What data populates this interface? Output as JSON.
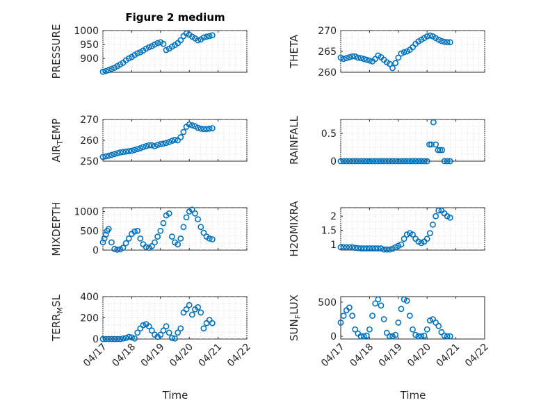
{
  "figure": {
    "title": "Figure 2 medium",
    "xlabel": "Time",
    "marker_color": "#0072bd",
    "xticklabels": [
      "04/17",
      "04/18",
      "04/19",
      "04/20",
      "04/21",
      "04/22"
    ]
  },
  "chart_data": [
    {
      "type": "scatter",
      "ylabel": "PRESSURE",
      "ylim": [
        850,
        1000
      ],
      "yticks": [
        900,
        950,
        1000
      ],
      "grid": true,
      "xlim": [
        0,
        5
      ],
      "x": [
        0.0,
        0.1,
        0.2,
        0.3,
        0.4,
        0.5,
        0.6,
        0.7,
        0.8,
        0.9,
        1.0,
        1.1,
        1.2,
        1.3,
        1.4,
        1.5,
        1.6,
        1.7,
        1.8,
        1.9,
        2.0,
        2.1,
        2.2,
        2.3,
        2.4,
        2.5,
        2.6,
        2.7,
        2.8,
        2.9,
        3.0,
        3.1,
        3.2,
        3.3,
        3.4,
        3.5,
        3.6,
        3.7,
        3.8
      ],
      "y": [
        852,
        854,
        858,
        862,
        866,
        872,
        878,
        884,
        893,
        900,
        905,
        912,
        918,
        922,
        928,
        935,
        940,
        944,
        950,
        955,
        958,
        952,
        930,
        935,
        942,
        948,
        955,
        965,
        980,
        990,
        985,
        978,
        972,
        965,
        968,
        975,
        978,
        980,
        983
      ]
    },
    {
      "type": "scatter",
      "ylabel": "THETA",
      "ylim": [
        260,
        270
      ],
      "yticks": [
        260,
        265,
        270
      ],
      "grid": true,
      "xlim": [
        0,
        5
      ],
      "x": [
        0.0,
        0.1,
        0.2,
        0.3,
        0.4,
        0.5,
        0.6,
        0.7,
        0.8,
        0.9,
        1.0,
        1.1,
        1.2,
        1.3,
        1.4,
        1.5,
        1.6,
        1.7,
        1.8,
        1.9,
        2.0,
        2.1,
        2.2,
        2.3,
        2.4,
        2.5,
        2.6,
        2.7,
        2.8,
        2.9,
        3.0,
        3.1,
        3.2,
        3.3,
        3.4,
        3.5,
        3.6,
        3.7,
        3.8
      ],
      "y": [
        263.5,
        263.2,
        263.4,
        263.6,
        263.8,
        263.8,
        263.5,
        263.4,
        263.2,
        263.0,
        262.8,
        262.6,
        263.2,
        264.0,
        263.6,
        263.0,
        262.4,
        262.0,
        261.0,
        262.2,
        263.5,
        264.5,
        264.8,
        265.0,
        265.4,
        266.0,
        266.8,
        267.4,
        267.8,
        268.2,
        268.6,
        268.8,
        268.6,
        268.2,
        267.8,
        267.5,
        267.3,
        267.2,
        267.2
      ]
    },
    {
      "type": "scatter",
      "ylabel": "AIR_TEMP",
      "ylim": [
        250,
        270
      ],
      "yticks": [
        250,
        260,
        270
      ],
      "grid": true,
      "xlim": [
        0,
        5
      ],
      "x": [
        0.0,
        0.1,
        0.2,
        0.3,
        0.4,
        0.5,
        0.6,
        0.7,
        0.8,
        0.9,
        1.0,
        1.1,
        1.2,
        1.3,
        1.4,
        1.5,
        1.6,
        1.7,
        1.8,
        1.9,
        2.0,
        2.1,
        2.2,
        2.3,
        2.4,
        2.5,
        2.6,
        2.7,
        2.8,
        2.9,
        3.0,
        3.1,
        3.2,
        3.3,
        3.4,
        3.5,
        3.6,
        3.7,
        3.8
      ],
      "y": [
        252,
        252.3,
        252.6,
        253,
        253.4,
        253.8,
        254.2,
        254.4,
        254.6,
        254.8,
        255,
        255.4,
        255.8,
        256.2,
        256.8,
        257.2,
        257.6,
        257.6,
        257.2,
        257.8,
        258.2,
        258.4,
        258.8,
        259.2,
        259.8,
        260.2,
        260.0,
        261.5,
        264.0,
        266.5,
        267.6,
        267.2,
        266.8,
        266.0,
        265.6,
        265.4,
        265.4,
        265.6,
        265.8
      ]
    },
    {
      "type": "scatter",
      "ylabel": "RAINFALL",
      "ylim": [
        0,
        0.75
      ],
      "yticks": [
        0,
        0.5
      ],
      "grid": true,
      "xlim": [
        0,
        5
      ],
      "x": [
        0.0,
        0.1,
        0.2,
        0.3,
        0.4,
        0.5,
        0.6,
        0.7,
        0.8,
        0.9,
        1.0,
        1.1,
        1.2,
        1.3,
        1.4,
        1.5,
        1.6,
        1.7,
        1.8,
        1.9,
        2.0,
        2.1,
        2.2,
        2.3,
        2.4,
        2.5,
        2.6,
        2.7,
        2.8,
        2.9,
        3.0,
        3.08,
        3.15,
        3.22,
        3.3,
        3.38,
        3.45,
        3.52,
        3.6,
        3.7,
        3.8
      ],
      "y": [
        0,
        0,
        0,
        0,
        0,
        0,
        0,
        0,
        0,
        0,
        0,
        0,
        0,
        0,
        0,
        0,
        0,
        0,
        0,
        0,
        0,
        0,
        0,
        0,
        0,
        0,
        0,
        0,
        0,
        0,
        0,
        0.3,
        0.3,
        0.7,
        0.3,
        0.2,
        0.2,
        0.2,
        0,
        0,
        0
      ]
    },
    {
      "type": "scatter",
      "ylabel": "MIXDEPTH",
      "ylim": [
        0,
        1100
      ],
      "yticks": [
        0,
        500,
        1000
      ],
      "grid": true,
      "xlim": [
        0,
        5
      ],
      "x": [
        0.0,
        0.05,
        0.1,
        0.15,
        0.2,
        0.3,
        0.4,
        0.5,
        0.6,
        0.7,
        0.8,
        0.9,
        1.0,
        1.1,
        1.2,
        1.3,
        1.4,
        1.5,
        1.6,
        1.7,
        1.8,
        1.9,
        2.0,
        2.1,
        2.2,
        2.3,
        2.4,
        2.5,
        2.6,
        2.7,
        2.8,
        2.9,
        3.0,
        3.1,
        3.2,
        3.3,
        3.4,
        3.5,
        3.6,
        3.7,
        3.8
      ],
      "y": [
        200,
        300,
        400,
        500,
        550,
        200,
        30,
        10,
        20,
        60,
        180,
        300,
        420,
        480,
        500,
        300,
        150,
        80,
        60,
        100,
        200,
        350,
        500,
        700,
        900,
        950,
        350,
        200,
        150,
        300,
        600,
        850,
        1000,
        1050,
        950,
        800,
        600,
        450,
        350,
        300,
        280
      ]
    },
    {
      "type": "scatter",
      "ylabel": "H2OMIXRA",
      "ylim": [
        0.8,
        2.3
      ],
      "yticks": [
        1,
        1.5,
        2
      ],
      "grid": true,
      "xlim": [
        0,
        5
      ],
      "x": [
        0.0,
        0.1,
        0.2,
        0.3,
        0.4,
        0.5,
        0.6,
        0.7,
        0.8,
        0.9,
        1.0,
        1.1,
        1.2,
        1.3,
        1.4,
        1.5,
        1.6,
        1.7,
        1.8,
        1.9,
        2.0,
        2.1,
        2.2,
        2.3,
        2.4,
        2.5,
        2.6,
        2.7,
        2.8,
        2.9,
        3.0,
        3.1,
        3.2,
        3.3,
        3.4,
        3.5,
        3.6,
        3.7,
        3.8
      ],
      "y": [
        0.9,
        0.9,
        0.9,
        0.9,
        0.9,
        0.88,
        0.87,
        0.86,
        0.86,
        0.86,
        0.86,
        0.86,
        0.86,
        0.86,
        0.86,
        0.82,
        0.82,
        0.82,
        0.85,
        0.9,
        0.95,
        1.0,
        1.2,
        1.35,
        1.4,
        1.35,
        1.2,
        1.1,
        1.05,
        1.1,
        1.2,
        1.4,
        1.7,
        2.0,
        2.2,
        2.2,
        2.1,
        2.0,
        1.95
      ]
    },
    {
      "type": "scatter",
      "ylabel": "TERR_MSL",
      "ylim": [
        0,
        400
      ],
      "yticks": [
        0,
        200,
        400
      ],
      "grid": true,
      "xlim": [
        0,
        5
      ],
      "x": [
        0.0,
        0.1,
        0.2,
        0.3,
        0.4,
        0.5,
        0.6,
        0.7,
        0.8,
        0.9,
        1.0,
        1.1,
        1.2,
        1.3,
        1.4,
        1.5,
        1.6,
        1.7,
        1.8,
        1.9,
        2.0,
        2.1,
        2.2,
        2.3,
        2.4,
        2.5,
        2.6,
        2.7,
        2.8,
        2.9,
        3.0,
        3.1,
        3.2,
        3.3,
        3.4,
        3.5,
        3.6,
        3.7,
        3.8
      ],
      "y": [
        0,
        0,
        0,
        0,
        0,
        0,
        0,
        5,
        10,
        20,
        15,
        5,
        60,
        100,
        130,
        140,
        120,
        80,
        40,
        20,
        40,
        80,
        120,
        60,
        10,
        5,
        60,
        100,
        250,
        280,
        320,
        230,
        280,
        300,
        250,
        100,
        150,
        180,
        150
      ]
    },
    {
      "type": "scatter",
      "ylabel": "SUN_FLUX",
      "ylim": [
        -40,
        580
      ],
      "yticks": [
        0,
        500
      ],
      "grid": false,
      "xlim": [
        0,
        5
      ],
      "x": [
        0.0,
        0.1,
        0.2,
        0.3,
        0.4,
        0.5,
        0.6,
        0.7,
        0.8,
        0.9,
        1.0,
        1.1,
        1.2,
        1.3,
        1.4,
        1.5,
        1.6,
        1.7,
        1.8,
        1.9,
        2.0,
        2.1,
        2.2,
        2.3,
        2.4,
        2.5,
        2.6,
        2.7,
        2.8,
        2.9,
        3.0,
        3.1,
        3.2,
        3.3,
        3.4,
        3.5,
        3.6,
        3.7,
        3.8
      ],
      "y": [
        200,
        300,
        380,
        420,
        300,
        100,
        40,
        0,
        0,
        10,
        100,
        300,
        480,
        540,
        450,
        250,
        50,
        0,
        0,
        20,
        200,
        400,
        540,
        520,
        300,
        100,
        20,
        0,
        0,
        10,
        100,
        230,
        250,
        200,
        150,
        60,
        10,
        0,
        0
      ]
    }
  ]
}
